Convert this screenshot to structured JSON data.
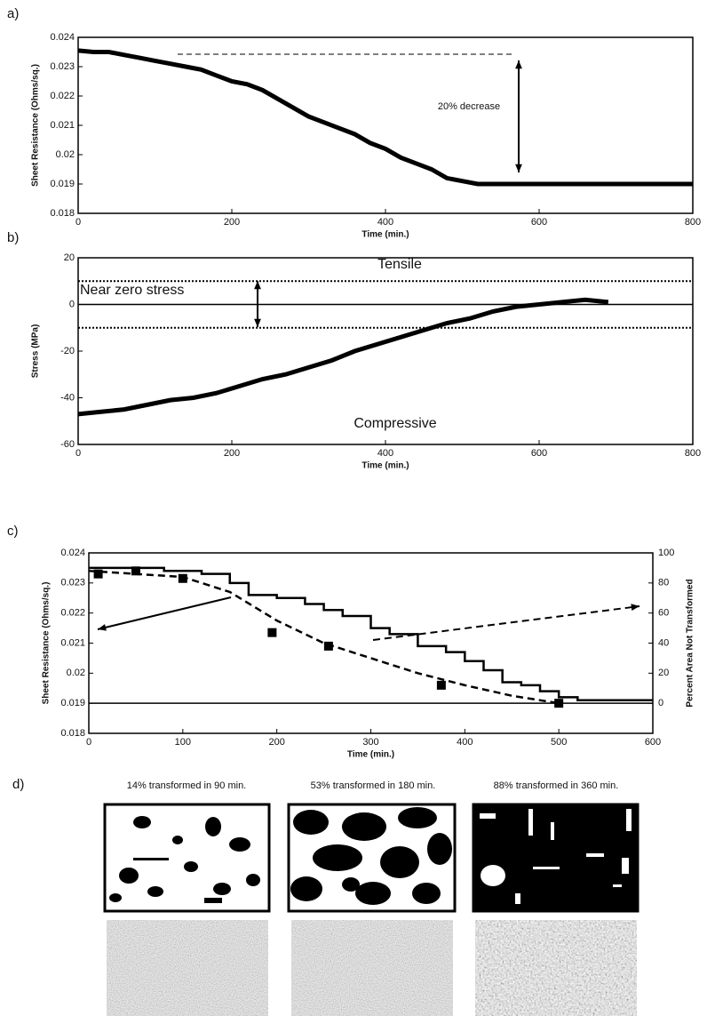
{
  "chart_data": [
    {
      "type": "line",
      "label": "a)",
      "x_label": "Time (min.)",
      "y_label": "Sheet Resistance (Ohms/sq.)",
      "xlim": [
        0,
        800
      ],
      "xticks": [
        0,
        200,
        400,
        600,
        800
      ],
      "ylim": [
        0.018,
        0.024
      ],
      "yticks": [
        0.018,
        0.019,
        0.02,
        0.021,
        0.022,
        0.023,
        0.024
      ],
      "annotations": [
        "20% decrease"
      ],
      "series": [
        {
          "color": "#000000",
          "style": "thick",
          "x": [
            0,
            20,
            40,
            60,
            80,
            100,
            120,
            140,
            160,
            180,
            200,
            220,
            240,
            260,
            280,
            300,
            320,
            340,
            360,
            380,
            400,
            420,
            440,
            460,
            480,
            500,
            520,
            560,
            600,
            640,
            680,
            720,
            760,
            800
          ],
          "values": [
            0.02355,
            0.0235,
            0.0235,
            0.0234,
            0.0233,
            0.0232,
            0.0231,
            0.023,
            0.0229,
            0.0227,
            0.0225,
            0.0224,
            0.0222,
            0.0219,
            0.0216,
            0.0213,
            0.0211,
            0.0209,
            0.0207,
            0.0204,
            0.0202,
            0.0199,
            0.0197,
            0.0195,
            0.0192,
            0.0191,
            0.019,
            0.019,
            0.019,
            0.019,
            0.019,
            0.019,
            0.019,
            0.019
          ]
        }
      ]
    },
    {
      "type": "line",
      "label": "b)",
      "x_label": "Time (min.)",
      "y_label": "Stress (MPa)",
      "xlim": [
        0,
        800
      ],
      "xticks": [
        0,
        200,
        400,
        600,
        800
      ],
      "ylim": [
        -60,
        20
      ],
      "yticks": [
        -60,
        -40,
        -20,
        0,
        20
      ],
      "annotations": [
        "Tensile",
        "Near zero stress",
        "Compressive"
      ],
      "reference_lines": [
        {
          "value": 10,
          "style": "dotted"
        },
        {
          "value": 0,
          "style": "solid"
        },
        {
          "value": -10,
          "style": "dotted"
        }
      ],
      "series": [
        {
          "color": "#000000",
          "style": "thick",
          "x": [
            0,
            30,
            60,
            90,
            120,
            150,
            180,
            210,
            240,
            270,
            300,
            330,
            360,
            390,
            420,
            450,
            480,
            510,
            540,
            570,
            600,
            630,
            660,
            690
          ],
          "values": [
            -47,
            -46,
            -45,
            -43,
            -41,
            -40,
            -38,
            -35,
            -32,
            -30,
            -27,
            -24,
            -20,
            -17,
            -14,
            -11,
            -8,
            -6,
            -3,
            -1,
            0,
            1,
            2,
            1
          ]
        }
      ]
    },
    {
      "type": "line",
      "label": "c)",
      "x_label": "Time (min.)",
      "y_label": "Sheet Resistance (Ohms/sq.)",
      "y2_label": "Percent Area Not Transformed",
      "xlim": [
        0,
        600
      ],
      "xticks": [
        0,
        100,
        200,
        300,
        400,
        500,
        600
      ],
      "ylim": [
        0.018,
        0.024
      ],
      "yticks": [
        0.018,
        0.019,
        0.02,
        0.021,
        0.022,
        0.023,
        0.024
      ],
      "y2lim": [
        -20,
        100
      ],
      "y2ticks": [
        0,
        20,
        40,
        60,
        80,
        100
      ],
      "reference_lines": [
        {
          "value": 0.019,
          "style": "solid"
        }
      ],
      "series": [
        {
          "color": "#000000",
          "style": "step",
          "x": [
            0,
            60,
            80,
            120,
            150,
            170,
            200,
            230,
            250,
            270,
            300,
            320,
            350,
            380,
            400,
            420,
            440,
            460,
            480,
            500,
            520,
            600
          ],
          "values": [
            0.0235,
            0.0235,
            0.0234,
            0.0233,
            0.023,
            0.0226,
            0.0225,
            0.0223,
            0.0221,
            0.0219,
            0.0215,
            0.0213,
            0.0209,
            0.0207,
            0.0204,
            0.0201,
            0.0197,
            0.0196,
            0.0194,
            0.0192,
            0.0191,
            0.0191
          ]
        },
        {
          "color": "#000000",
          "style": "markers",
          "axis": "y2",
          "x": [
            10,
            50,
            100,
            195,
            255,
            375,
            500
          ],
          "values": [
            86,
            88,
            83,
            47,
            38,
            12,
            0
          ]
        },
        {
          "color": "#000000",
          "style": "dashed",
          "axis": "y2",
          "x": [
            0,
            100,
            150,
            200,
            250,
            300,
            350,
            400,
            450,
            500
          ],
          "values": [
            88,
            84,
            74,
            55,
            40,
            30,
            20,
            12,
            5,
            0
          ]
        }
      ]
    }
  ],
  "panel_d": {
    "label": "d)",
    "captions": [
      "14% transformed in 90 min.",
      "53% transformed in 180 min.",
      "88% transformed in 360 min."
    ]
  }
}
